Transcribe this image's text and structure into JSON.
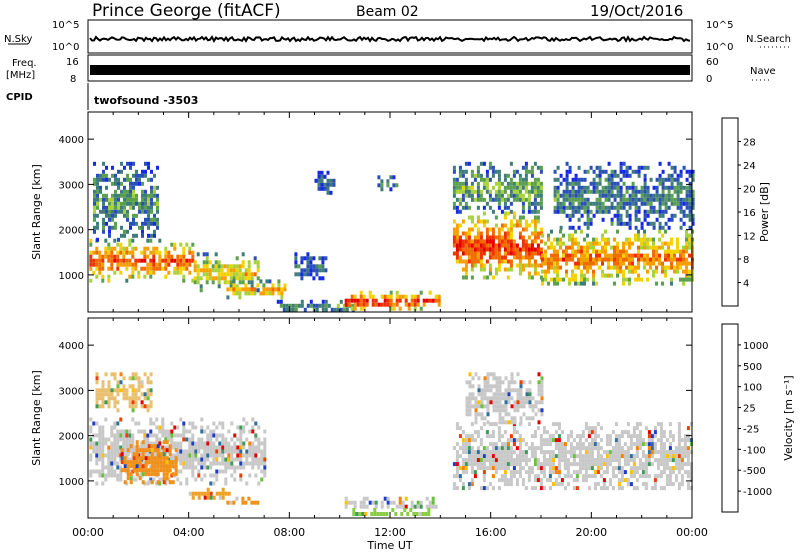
{
  "header": {
    "station": "Prince George (fitACF)",
    "beam": "Beam 02",
    "date": "19/Oct/2016"
  },
  "strips": {
    "nsky_label": "N.Sky",
    "nsky_ticks": [
      "10^5",
      "10^0"
    ],
    "nsearch_label": "N.Search",
    "nsearch_ticks": [
      "10^5",
      "10^0"
    ],
    "freq_label_1": "Freq.",
    "freq_label_2": "[MHz]",
    "freq_ticks": [
      "16",
      "8"
    ],
    "nave_label": "Nave",
    "nave_ticks": [
      "60",
      "0"
    ],
    "cpid_label": "CPID",
    "cpid_value": "twofsound -3503"
  },
  "chart_data": [
    {
      "type": "heatmap",
      "name": "power",
      "ylabel": "Slant Range [km]",
      "ylim": [
        180,
        4600
      ],
      "yticks": [
        "1000",
        "2000",
        "3000",
        "4000"
      ],
      "xlim_hours": [
        0,
        24
      ],
      "colorbar_label": "Power [dB]",
      "colorbar_ticks": [
        "28",
        "24",
        "20",
        "16",
        "12",
        "8",
        "4"
      ],
      "colorbar_colors": [
        "#1428e6",
        "#2a4fb8",
        "#3f7d7a",
        "#5aa04f",
        "#a8d23c",
        "#f4d200",
        "#f5a000",
        "#f26a00",
        "#ef3000",
        "#e60000"
      ],
      "blobs": [
        {
          "t0": 0.05,
          "t1": 4.2,
          "r0": 900,
          "r1": 1800,
          "level": 0.75
        },
        {
          "t0": 4.2,
          "t1": 6.8,
          "r0": 700,
          "r1": 1500,
          "level": 0.55
        },
        {
          "t0": 0.2,
          "t1": 2.8,
          "r0": 1800,
          "r1": 3500,
          "level": 0.3
        },
        {
          "t0": 5.5,
          "t1": 7.8,
          "r0": 500,
          "r1": 900,
          "level": 0.6
        },
        {
          "t0": 7.5,
          "t1": 10.5,
          "r0": 200,
          "r1": 450,
          "level": 0.3
        },
        {
          "t0": 10.2,
          "t1": 14.0,
          "r0": 250,
          "r1": 650,
          "level": 0.85
        },
        {
          "t0": 8.2,
          "t1": 9.5,
          "r0": 900,
          "r1": 1500,
          "level": 0.2
        },
        {
          "t0": 9.0,
          "t1": 9.8,
          "r0": 2800,
          "r1": 3300,
          "level": 0.2
        },
        {
          "t0": 11.5,
          "t1": 12.3,
          "r0": 2800,
          "r1": 3200,
          "level": 0.2
        },
        {
          "t0": 14.5,
          "t1": 18.0,
          "r0": 900,
          "r1": 2400,
          "level": 0.8
        },
        {
          "t0": 14.5,
          "t1": 18.0,
          "r0": 2400,
          "r1": 3500,
          "level": 0.35
        },
        {
          "t0": 18.0,
          "t1": 24.0,
          "r0": 800,
          "r1": 2000,
          "level": 0.7
        },
        {
          "t0": 18.5,
          "t1": 24.0,
          "r0": 2000,
          "r1": 3500,
          "level": 0.25
        }
      ]
    },
    {
      "type": "heatmap",
      "name": "velocity",
      "ylabel": "Slant Range [km]",
      "ylim": [
        180,
        4600
      ],
      "yticks": [
        "1000",
        "2000",
        "3000",
        "4000"
      ],
      "xlim_hours": [
        0,
        24
      ],
      "xticks": [
        "00:00",
        "04:00",
        "08:00",
        "12:00",
        "16:00",
        "20:00",
        "00:00"
      ],
      "xlabel": "Time UT",
      "colorbar_label": "Velocity [m s⁻¹]",
      "colorbar_ticks": [
        "1000",
        "500",
        "100",
        "25",
        "-25",
        "-100",
        "-500",
        "-1000"
      ],
      "colorbar_colors": [
        "#1e3cc8",
        "#2e6ea0",
        "#3f9a5a",
        "#66c23a",
        "#c8c8c8",
        "#ffc000",
        "#f88000",
        "#f03c00",
        "#e60000"
      ],
      "blobs": [
        {
          "t0": 0.05,
          "t1": 7.0,
          "r0": 900,
          "r1": 2400,
          "color": "#c8c8c8"
        },
        {
          "t0": 1.3,
          "t1": 3.5,
          "r0": 950,
          "r1": 1900,
          "color": "#f09018"
        },
        {
          "t0": 4.0,
          "t1": 5.6,
          "r0": 650,
          "r1": 850,
          "color": "#f0a020"
        },
        {
          "t0": 5.5,
          "t1": 6.8,
          "r0": 500,
          "r1": 650,
          "color": "#f09018"
        },
        {
          "t0": 0.3,
          "t1": 2.5,
          "r0": 2600,
          "r1": 3400,
          "color": "#e8c070"
        },
        {
          "t0": 10.2,
          "t1": 13.8,
          "r0": 400,
          "r1": 650,
          "color": "#c8c8c8"
        },
        {
          "t0": 10.5,
          "t1": 13.5,
          "r0": 250,
          "r1": 400,
          "color": "#88cc44"
        },
        {
          "t0": 14.5,
          "t1": 24.0,
          "r0": 800,
          "r1": 2300,
          "color": "#c8c8c8"
        },
        {
          "t0": 15.0,
          "t1": 18.0,
          "r0": 2300,
          "r1": 3400,
          "color": "#c8c8c8"
        }
      ]
    }
  ]
}
